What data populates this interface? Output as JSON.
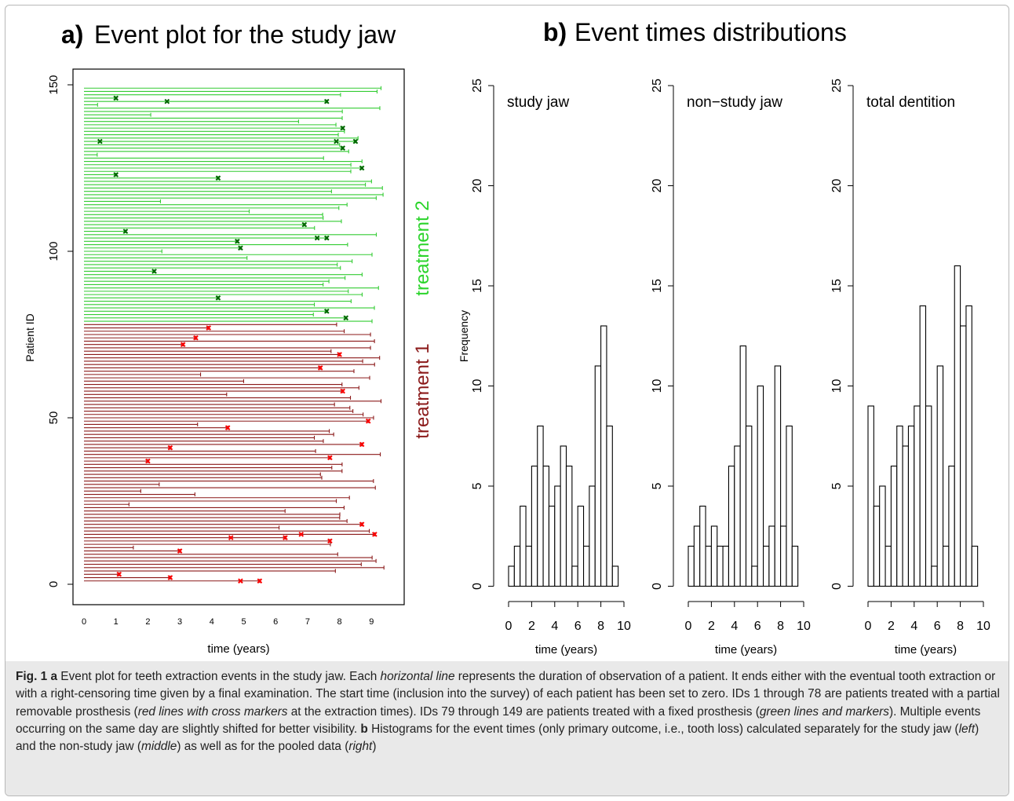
{
  "panel_a": {
    "label": "a)",
    "title": "Event plot for the study jaw",
    "xlabel": "time (years)",
    "ylabel": "Patient ID",
    "group_labels": [
      "treatment 2",
      "treatment 1"
    ]
  },
  "panel_b": {
    "label": "b)",
    "title": "Event times distributions",
    "ylabel": "Frequency"
  },
  "caption": {
    "parts": [
      {
        "t": "Fig. 1 a",
        "s": "b"
      },
      {
        "t": " Event plot for teeth extraction events in the study jaw. Each ",
        "s": ""
      },
      {
        "t": "horizontal line",
        "s": "i"
      },
      {
        "t": " represents the duration of observation of a patient. It ends either with the eventual tooth extraction or with a right-censoring time given by a final examination. The start time (inclusion into the survey) of each patient has been set to zero. IDs 1 through 78 are patients treated with a partial removable prosthesis (",
        "s": ""
      },
      {
        "t": "red lines with cross markers",
        "s": "i"
      },
      {
        "t": " at the extraction times). IDs 79 through 149 are patients treated with a fixed prosthesis (",
        "s": ""
      },
      {
        "t": "green lines and markers",
        "s": "i"
      },
      {
        "t": "). Multiple events occurring on the same day are slightly shifted for better visibility. ",
        "s": ""
      },
      {
        "t": "b",
        "s": "b"
      },
      {
        "t": " Histograms for the event times (only primary outcome, i.e., tooth loss) calculated separately for the study jaw (",
        "s": ""
      },
      {
        "t": "left",
        "s": "i"
      },
      {
        "t": ") and the non-study jaw (",
        "s": ""
      },
      {
        "t": "middle",
        "s": "i"
      },
      {
        "t": ") as well as for the pooled data (",
        "s": ""
      },
      {
        "t": "right",
        "s": "i"
      },
      {
        "t": ")",
        "s": ""
      }
    ]
  },
  "colors": {
    "treatment2_line": "#33cc33",
    "treatment2_marker": "#006400",
    "treatment1_line": "#8b1a1a",
    "treatment1_marker": "#ff0000",
    "bar_fill": "#ffffff",
    "bar_stroke": "#000000",
    "caption_bg": "#e9e9e9"
  },
  "chart_data": [
    {
      "type": "event-plot",
      "title": "Event plot for the study jaw",
      "xlabel": "time (years)",
      "ylabel": "Patient ID",
      "xlim": [
        0,
        9.5
      ],
      "ylim": [
        0,
        149
      ],
      "xticks": [
        0,
        1,
        2,
        3,
        4,
        5,
        6,
        7,
        8,
        9
      ],
      "yticks": [
        0,
        50,
        100,
        150
      ],
      "groups": [
        {
          "name": "treatment 1",
          "ids": [
            1,
            78
          ]
        },
        {
          "name": "treatment 2",
          "ids": [
            79,
            149
          ]
        }
      ],
      "events": [
        {
          "id": 3,
          "t": 1.1
        },
        {
          "id": 2,
          "t": 2.7
        },
        {
          "id": 1,
          "t": 4.9
        },
        {
          "id": 1,
          "t": 5.5
        },
        {
          "id": 10,
          "t": 3.0
        },
        {
          "id": 14,
          "t": 4.6
        },
        {
          "id": 14,
          "t": 6.3
        },
        {
          "id": 15,
          "t": 6.8
        },
        {
          "id": 13,
          "t": 7.7
        },
        {
          "id": 15,
          "t": 9.1
        },
        {
          "id": 18,
          "t": 8.7
        },
        {
          "id": 37,
          "t": 2.0
        },
        {
          "id": 38,
          "t": 7.7
        },
        {
          "id": 41,
          "t": 2.7
        },
        {
          "id": 42,
          "t": 8.7
        },
        {
          "id": 47,
          "t": 4.5
        },
        {
          "id": 49,
          "t": 8.9
        },
        {
          "id": 58,
          "t": 8.1
        },
        {
          "id": 65,
          "t": 7.4
        },
        {
          "id": 69,
          "t": 8.0
        },
        {
          "id": 72,
          "t": 3.1
        },
        {
          "id": 74,
          "t": 3.5
        },
        {
          "id": 77,
          "t": 3.9
        },
        {
          "id": 80,
          "t": 8.2
        },
        {
          "id": 82,
          "t": 7.6
        },
        {
          "id": 86,
          "t": 4.2
        },
        {
          "id": 94,
          "t": 2.2
        },
        {
          "id": 101,
          "t": 4.9
        },
        {
          "id": 103,
          "t": 4.8
        },
        {
          "id": 104,
          "t": 7.3
        },
        {
          "id": 104,
          "t": 7.6
        },
        {
          "id": 106,
          "t": 1.3
        },
        {
          "id": 108,
          "t": 6.9
        },
        {
          "id": 122,
          "t": 4.2
        },
        {
          "id": 123,
          "t": 1.0
        },
        {
          "id": 125,
          "t": 8.7
        },
        {
          "id": 131,
          "t": 8.1
        },
        {
          "id": 133,
          "t": 0.5
        },
        {
          "id": 133,
          "t": 7.9
        },
        {
          "id": 133,
          "t": 8.5
        },
        {
          "id": 137,
          "t": 8.1
        },
        {
          "id": 145,
          "t": 2.6
        },
        {
          "id": 145,
          "t": 7.6
        },
        {
          "id": 146,
          "t": 1.0
        }
      ]
    },
    {
      "type": "bar",
      "title": "study jaw",
      "xlabel": "time (years)",
      "ylabel": "Frequency",
      "bin_width": 0.5,
      "bin_start": 0,
      "xlim": [
        0,
        10
      ],
      "ylim": [
        0,
        25
      ],
      "xticks": [
        0,
        2,
        4,
        6,
        8,
        10
      ],
      "yticks": [
        0,
        5,
        10,
        15,
        20,
        25
      ],
      "values": [
        1,
        2,
        4,
        2,
        6,
        8,
        6,
        4,
        5,
        7,
        6,
        1,
        4,
        2,
        5,
        11,
        13,
        8,
        1
      ]
    },
    {
      "type": "bar",
      "title": "non−study jaw",
      "xlabel": "time (years)",
      "bin_width": 0.5,
      "bin_start": 0,
      "xlim": [
        0,
        10
      ],
      "ylim": [
        0,
        25
      ],
      "xticks": [
        0,
        2,
        4,
        6,
        8,
        10
      ],
      "yticks": [
        0,
        5,
        10,
        15,
        20,
        25
      ],
      "values": [
        2,
        3,
        4,
        2,
        3,
        2,
        2,
        6,
        7,
        12,
        8,
        1,
        10,
        2,
        3,
        11,
        3,
        8,
        2
      ]
    },
    {
      "type": "bar",
      "title": "total dentition",
      "xlabel": "time (years)",
      "bin_width": 0.5,
      "bin_start": 0,
      "xlim": [
        0,
        10
      ],
      "ylim": [
        0,
        25
      ],
      "xticks": [
        0,
        2,
        4,
        6,
        8,
        10
      ],
      "yticks": [
        0,
        5,
        10,
        15,
        20,
        25
      ],
      "values": [
        9,
        4,
        5,
        2,
        6,
        8,
        7,
        8,
        9,
        14,
        9,
        1,
        11,
        2,
        6,
        16,
        13,
        14,
        2
      ]
    }
  ]
}
